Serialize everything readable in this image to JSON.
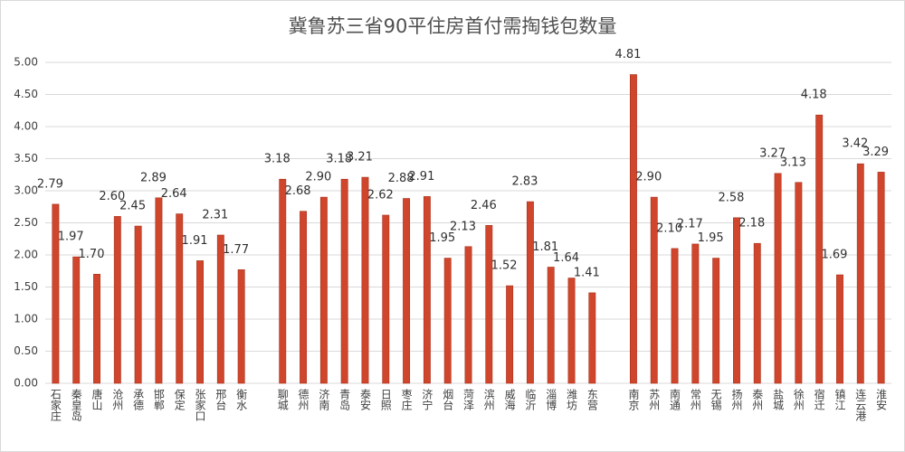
{
  "chart_data": {
    "type": "bar",
    "title": "冀鲁苏三省90平住房首付需掏钱包数量",
    "categories": [
      "石家庄",
      "秦皇岛",
      "唐山",
      "沧州",
      "承德",
      "邯郸",
      "保定",
      "张家口",
      "邢台",
      "衡水",
      null,
      "聊城",
      "德州",
      "济南",
      "青岛",
      "泰安",
      "日照",
      "枣庄",
      "济宁",
      "烟台",
      "菏泽",
      "滨州",
      "威海",
      "临沂",
      "淄博",
      "潍坊",
      "东营",
      null,
      "南京",
      "苏州",
      "南通",
      "常州",
      "无锡",
      "扬州",
      "泰州",
      "盐城",
      "徐州",
      "宿迁",
      "镇江",
      "连云港",
      "淮安"
    ],
    "values": [
      2.79,
      1.97,
      1.7,
      2.6,
      2.45,
      2.89,
      2.64,
      1.91,
      2.31,
      1.77,
      null,
      3.18,
      2.68,
      2.9,
      3.18,
      3.21,
      2.62,
      2.88,
      2.91,
      1.95,
      2.13,
      2.46,
      1.52,
      2.83,
      1.81,
      1.64,
      1.41,
      null,
      4.81,
      2.9,
      2.1,
      2.17,
      1.95,
      2.58,
      2.18,
      3.27,
      3.13,
      4.18,
      1.69,
      3.42,
      3.29
    ],
    "value_labels": [
      "2.79",
      "1.97",
      "1.70",
      "2.60",
      "2.45",
      "2.89",
      "2.64",
      "1.91",
      "2.31",
      "1.77",
      null,
      "3.18",
      "2.68",
      "2.90",
      "3.18",
      "3.21",
      "2.62",
      "2.88",
      "2.91",
      "1.95",
      "2.13",
      "2.46",
      "1.52",
      "2.83",
      "1.81",
      "1.64",
      "1.41",
      null,
      "4.81",
      "2.90",
      "2.10",
      "2.17",
      "1.95",
      "2.58",
      "2.18",
      "3.27",
      "3.13",
      "4.18",
      "1.69",
      "3.42",
      "3.29"
    ],
    "color": "#d0462c",
    "ylim": [
      0,
      5
    ],
    "yticks": [
      {
        "value": 0,
        "label": "0.00"
      },
      {
        "value": 0.5,
        "label": "0.50"
      },
      {
        "value": 1,
        "label": "1.00"
      },
      {
        "value": 1.5,
        "label": "1.50"
      },
      {
        "value": 2,
        "label": "2.00"
      },
      {
        "value": 2.5,
        "label": "2.50"
      },
      {
        "value": 3,
        "label": "3.00"
      },
      {
        "value": 3.5,
        "label": "3.50"
      },
      {
        "value": 4,
        "label": "4.00"
      },
      {
        "value": 4.5,
        "label": "4.50"
      },
      {
        "value": 5,
        "label": "5.00"
      }
    ],
    "grid": true
  }
}
